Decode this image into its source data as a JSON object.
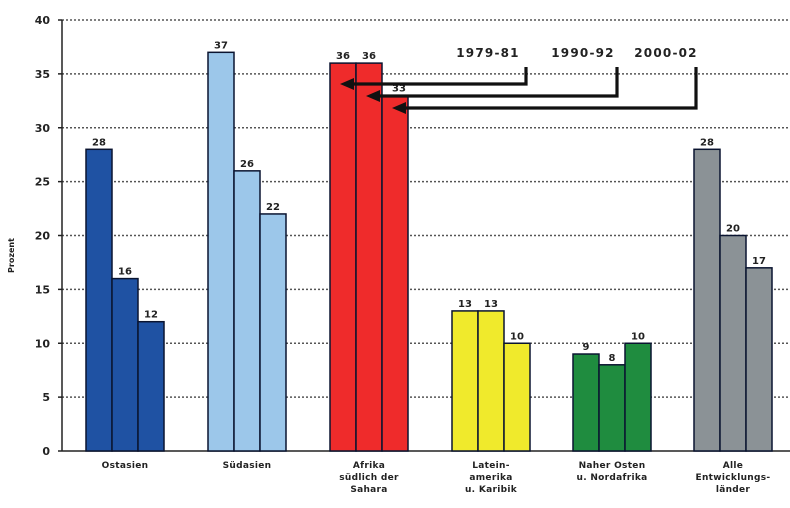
{
  "chart_data": {
    "type": "bar",
    "ylabel": "Prozent",
    "ylim": [
      0,
      40
    ],
    "yticks": [
      0,
      5,
      10,
      15,
      20,
      25,
      30,
      35,
      40
    ],
    "grid": true,
    "legend_position": "top-center",
    "categories": [
      {
        "lines": [
          "Ostasien"
        ],
        "colors": [
          "#1f52a3",
          "#1f52a3",
          "#1f52a3"
        ]
      },
      {
        "lines": [
          "Südasien"
        ],
        "colors": [
          "#9cc7ea",
          "#9cc7ea",
          "#9cc7ea"
        ]
      },
      {
        "lines": [
          "Afrika",
          "südlich der",
          "Sahara"
        ],
        "colors": [
          "#ef2b2b",
          "#ef2b2b",
          "#ef2b2b"
        ]
      },
      {
        "lines": [
          "Latein-",
          "amerika",
          "u. Karibik"
        ],
        "colors": [
          "#f0ea2c",
          "#f0ea2c",
          "#f0ea2c"
        ]
      },
      {
        "lines": [
          "Naher Osten",
          "u. Nordafrika"
        ],
        "colors": [
          "#1f8c3f",
          "#1f8c3f",
          "#1f8c3f"
        ]
      },
      {
        "lines": [
          "Alle",
          "Entwicklungs-",
          "länder"
        ],
        "colors": [
          "#8b9296",
          "#8b9296",
          "#8b9296"
        ]
      }
    ],
    "series": [
      {
        "name": "1979-81",
        "values": [
          28,
          37,
          36,
          13,
          9,
          28
        ]
      },
      {
        "name": "1990-92",
        "values": [
          16,
          26,
          36,
          13,
          8,
          20
        ]
      },
      {
        "name": "2000-02",
        "values": [
          12,
          22,
          33,
          10,
          10,
          17
        ]
      }
    ],
    "value_labels": [
      [
        "28",
        "37",
        "36",
        "13",
        "9",
        "28"
      ],
      [
        "16",
        "26",
        "36",
        "13",
        "8",
        "20"
      ],
      [
        "12",
        "22",
        "33",
        "10",
        "10",
        "17"
      ]
    ]
  }
}
